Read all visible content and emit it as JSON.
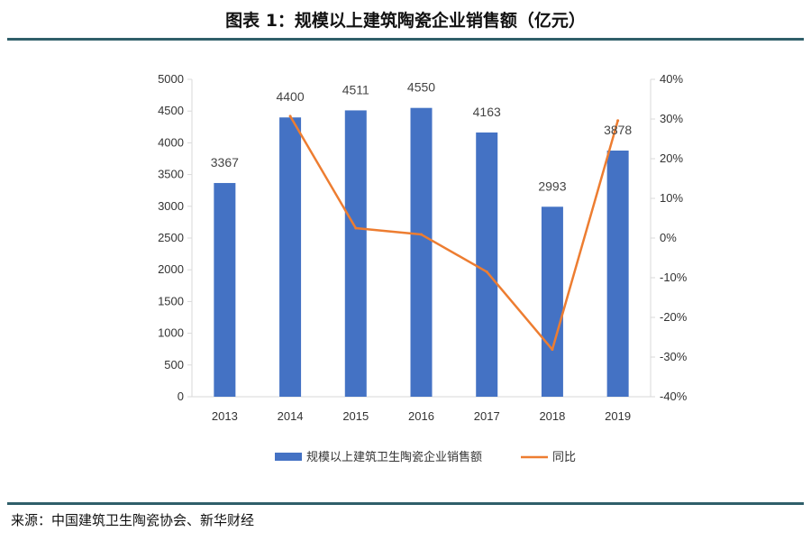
{
  "title": "图表 1：规模以上建筑陶瓷企业销售额（亿元）",
  "source": "来源：中国建筑卫生陶瓷协会、新华财经",
  "colors": {
    "bar": "#4472c4",
    "line": "#ed7d31",
    "rule": "#2f5f6a",
    "axis": "#d9d9d9"
  },
  "chart_data": {
    "type": "bar",
    "categories": [
      "2013",
      "2014",
      "2015",
      "2016",
      "2017",
      "2018",
      "2019"
    ],
    "series": [
      {
        "name": "规模以上建筑卫生陶瓷企业销售额",
        "type": "bar",
        "axis": "left",
        "values": [
          3367,
          4400,
          4511,
          4550,
          4163,
          2993,
          3878
        ],
        "labels": [
          "3367",
          "4400",
          "4511",
          "4550",
          "4163",
          "2993",
          "3878"
        ]
      },
      {
        "name": "同比",
        "type": "line",
        "axis": "right",
        "values": [
          null,
          30.7,
          2.5,
          0.9,
          -8.5,
          -28.1,
          29.6
        ]
      }
    ],
    "y_left": {
      "min": 0,
      "max": 5000,
      "step": 500,
      "ticks": [
        "0",
        "500",
        "1000",
        "1500",
        "2000",
        "2500",
        "3000",
        "3500",
        "4000",
        "4500",
        "5000"
      ]
    },
    "y_right": {
      "min": -40,
      "max": 40,
      "step": 10,
      "ticks": [
        "-40%",
        "-30%",
        "-20%",
        "-10%",
        "0%",
        "10%",
        "20%",
        "30%",
        "40%"
      ]
    },
    "grid": false,
    "legend": "bottom"
  }
}
